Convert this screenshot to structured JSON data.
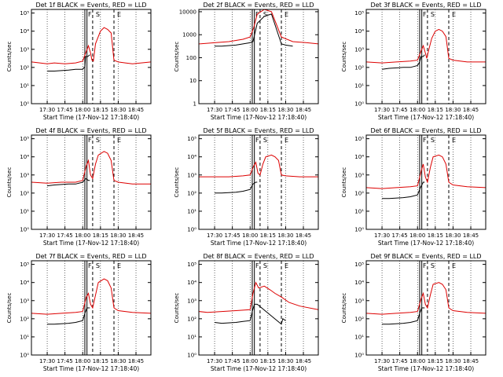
{
  "figure": {
    "background": "#ffffff",
    "colors": {
      "events": "#000000",
      "lld": "#dd0000"
    }
  },
  "chart_data": [
    {
      "type": "line",
      "title": "Det 1f BLACK = Events, RED = LLD",
      "xlabel": "Start Time (17-Nov-12 17:18:40)",
      "ylabel": "Counts/sec",
      "xticks": [
        "17:30",
        "17:45",
        "18:00",
        "18:15",
        "18:30",
        "18:45"
      ],
      "yticks": [
        "10⁰",
        "10¹",
        "10²",
        "10³",
        "10⁴",
        "10⁵"
      ],
      "xlim": [
        17.278,
        18.96
      ],
      "ylim_log10": [
        0,
        5.2
      ],
      "markers": [
        "F",
        "S",
        "E"
      ],
      "grid_dotted": true,
      "solid_lines": [
        18.03,
        18.06
      ],
      "dashed_lines": [
        18.14,
        18.44
      ],
      "series": [
        {
          "x": [
            17.5,
            17.6,
            17.8,
            17.9,
            18.0,
            18.02,
            18.03,
            18.04,
            18.05,
            18.07,
            18.1
          ],
          "log10_y": [
            1.8,
            1.8,
            1.85,
            1.9,
            1.9,
            2.0,
            2.0,
            2.6,
            2.6,
            2.6,
            2.7
          ]
        },
        {
          "x": [
            17.28,
            17.5,
            17.6,
            17.75,
            17.9,
            18.0,
            18.08,
            18.11,
            18.13,
            18.15,
            18.18,
            18.25,
            18.3,
            18.35,
            18.4,
            18.44,
            18.5,
            18.6,
            18.7,
            18.96
          ],
          "log10_y": [
            2.3,
            2.2,
            2.25,
            2.2,
            2.25,
            2.35,
            3.2,
            2.8,
            2.4,
            2.35,
            3.3,
            4.0,
            4.2,
            4.1,
            3.9,
            2.4,
            2.3,
            2.25,
            2.2,
            2.3
          ]
        }
      ]
    },
    {
      "type": "line",
      "title": "Det 2f BLACK = Events, RED = LLD",
      "xlabel": "Start Time (17-Nov-12 17:18:40)",
      "ylabel": "Counts/sec",
      "xticks": [
        "17:30",
        "17:45",
        "18:00",
        "18:15",
        "18:30",
        "18:45"
      ],
      "yticks": [
        "1",
        "10",
        "100",
        "1000",
        "10000"
      ],
      "xlim": [
        17.278,
        18.96
      ],
      "ylim_log10": [
        0,
        4.1
      ],
      "markers": [
        "F",
        "S",
        "E"
      ],
      "grid_dotted": true,
      "solid_lines": [
        18.03,
        18.06
      ],
      "dashed_lines": [
        18.14,
        18.44
      ],
      "series": [
        {
          "x": [
            17.5,
            17.6,
            17.8,
            17.9,
            18.0,
            18.04,
            18.1,
            18.2,
            18.3,
            18.44,
            18.5,
            18.6
          ],
          "log10_y": [
            2.5,
            2.5,
            2.55,
            2.6,
            2.65,
            2.7,
            3.5,
            3.8,
            3.9,
            2.6,
            2.55,
            2.5
          ]
        },
        {
          "x": [
            17.28,
            17.5,
            17.7,
            17.9,
            18.0,
            18.05,
            18.1,
            18.2,
            18.3,
            18.44,
            18.6,
            18.8,
            18.96
          ],
          "log10_y": [
            2.6,
            2.65,
            2.7,
            2.8,
            2.9,
            3.3,
            3.9,
            4.1,
            4.0,
            2.9,
            2.7,
            2.65,
            2.6
          ]
        }
      ]
    },
    {
      "type": "line",
      "title": "Det 3f BLACK = Events, RED = LLD",
      "xlabel": "Start Time (17-Nov-12 17:18:40)",
      "ylabel": "Counts/sec",
      "xticks": [
        "17:30",
        "17:45",
        "18:00",
        "18:15",
        "18:30",
        "18:45"
      ],
      "yticks": [
        "10⁰",
        "10¹",
        "10²",
        "10³",
        "10⁴",
        "10⁵"
      ],
      "xlim": [
        17.278,
        18.96
      ],
      "ylim_log10": [
        0,
        5.2
      ],
      "markers": [
        "F",
        "S",
        "E"
      ],
      "grid_dotted": true,
      "solid_lines": [
        18.03,
        18.06
      ],
      "dashed_lines": [
        18.14,
        18.44
      ],
      "series": [
        {
          "x": [
            17.5,
            17.6,
            17.8,
            17.9,
            18.0,
            18.03,
            18.05,
            18.08,
            18.1
          ],
          "log10_y": [
            1.9,
            1.95,
            2.0,
            2.0,
            2.1,
            2.3,
            2.6,
            2.6,
            2.7
          ]
        },
        {
          "x": [
            17.28,
            17.5,
            17.7,
            17.9,
            18.0,
            18.08,
            18.11,
            18.13,
            18.16,
            18.2,
            18.25,
            18.3,
            18.35,
            18.4,
            18.44,
            18.5,
            18.7,
            18.96
          ],
          "log10_y": [
            2.3,
            2.25,
            2.3,
            2.35,
            2.4,
            3.2,
            2.8,
            2.5,
            3.0,
            3.6,
            4.0,
            4.1,
            4.0,
            3.7,
            2.5,
            2.4,
            2.3,
            2.3
          ]
        }
      ]
    },
    {
      "type": "line",
      "title": "Det 4f BLACK = Events, RED = LLD",
      "xlabel": "Start Time (17-Nov-12 17:18:40)",
      "ylabel": "Counts/sec",
      "xticks": [
        "17:30",
        "17:45",
        "18:00",
        "18:15",
        "18:30",
        "18:45"
      ],
      "yticks": [
        "10⁰",
        "10¹",
        "10²",
        "10³",
        "10⁴",
        "10⁵"
      ],
      "xlim": [
        17.278,
        18.96
      ],
      "ylim_log10": [
        0,
        5.2
      ],
      "markers": [
        "F",
        "S",
        "E"
      ],
      "grid_dotted": true,
      "solid_lines": [
        18.03,
        18.06
      ],
      "dashed_lines": [
        18.14,
        18.44
      ],
      "series": [
        {
          "x": [
            17.5,
            17.6,
            17.8,
            17.9,
            18.0,
            18.04,
            18.08,
            18.1
          ],
          "log10_y": [
            2.4,
            2.45,
            2.5,
            2.5,
            2.6,
            2.8,
            2.7,
            2.7
          ]
        },
        {
          "x": [
            17.28,
            17.5,
            17.7,
            17.9,
            18.0,
            18.05,
            18.08,
            18.11,
            18.14,
            18.18,
            18.22,
            18.3,
            18.35,
            18.4,
            18.44,
            18.5,
            18.7,
            18.96
          ],
          "log10_y": [
            2.6,
            2.55,
            2.6,
            2.6,
            2.7,
            3.5,
            3.8,
            3.0,
            2.8,
            3.6,
            4.1,
            4.3,
            4.2,
            3.8,
            2.7,
            2.6,
            2.5,
            2.5
          ]
        }
      ]
    },
    {
      "type": "line",
      "title": "Det 5f BLACK = Events, RED = LLD",
      "xlabel": "Start Time (17-Nov-12 17:18:40)",
      "ylabel": "Counts/sec",
      "xticks": [
        "17:30",
        "17:45",
        "18:00",
        "18:15",
        "18:30",
        "18:45"
      ],
      "yticks": [
        "10⁰",
        "10¹",
        "10²",
        "10³",
        "10⁴",
        "10⁵"
      ],
      "xlim": [
        17.278,
        18.96
      ],
      "ylim_log10": [
        0,
        5.2
      ],
      "markers": [
        "F",
        "S",
        "E"
      ],
      "grid_dotted": true,
      "solid_lines": [
        18.03,
        18.06
      ],
      "dashed_lines": [
        18.14,
        18.44
      ],
      "series": [
        {
          "x": [
            17.5,
            17.6,
            17.8,
            17.9,
            18.0,
            18.04,
            18.08,
            18.1
          ],
          "log10_y": [
            2.0,
            2.0,
            2.05,
            2.1,
            2.2,
            2.5,
            2.6,
            2.6
          ]
        },
        {
          "x": [
            17.28,
            17.5,
            17.7,
            17.9,
            18.0,
            18.05,
            18.08,
            18.11,
            18.14,
            18.18,
            18.22,
            18.3,
            18.35,
            18.4,
            18.44,
            18.5,
            18.7,
            18.96
          ],
          "log10_y": [
            2.9,
            2.9,
            2.9,
            2.95,
            3.0,
            3.5,
            3.7,
            3.1,
            3.0,
            3.6,
            4.0,
            4.1,
            4.0,
            3.8,
            3.0,
            2.95,
            2.9,
            2.9
          ]
        }
      ]
    },
    {
      "type": "line",
      "title": "Det 6f BLACK = Events, RED = LLD",
      "xlabel": "Start Time (17-Nov-12 17:18:40)",
      "ylabel": "Counts/sec",
      "xticks": [
        "17:30",
        "17:45",
        "18:00",
        "18:15",
        "18:30",
        "18:45"
      ],
      "yticks": [
        "10⁰",
        "10¹",
        "10²",
        "10³",
        "10⁴",
        "10⁵"
      ],
      "xlim": [
        17.278,
        18.96
      ],
      "ylim_log10": [
        0,
        5.2
      ],
      "markers": [
        "F",
        "S",
        "E"
      ],
      "grid_dotted": true,
      "solid_lines": [
        18.03,
        18.06
      ],
      "dashed_lines": [
        18.14,
        18.44
      ],
      "series": [
        {
          "x": [
            17.5,
            17.6,
            17.8,
            17.9,
            18.0,
            18.04,
            18.08,
            18.1
          ],
          "log10_y": [
            1.7,
            1.7,
            1.75,
            1.8,
            1.9,
            2.3,
            2.6,
            2.6
          ]
        },
        {
          "x": [
            17.28,
            17.5,
            17.7,
            17.9,
            18.0,
            18.05,
            18.08,
            18.11,
            18.14,
            18.18,
            18.22,
            18.3,
            18.35,
            18.4,
            18.44,
            18.5,
            18.7,
            18.96
          ],
          "log10_y": [
            2.3,
            2.25,
            2.3,
            2.35,
            2.4,
            3.2,
            3.6,
            2.9,
            2.6,
            3.4,
            4.0,
            4.1,
            4.0,
            3.6,
            2.6,
            2.45,
            2.35,
            2.3
          ]
        }
      ]
    },
    {
      "type": "line",
      "title": "Det 7f BLACK = Events, RED = LLD",
      "xlabel": "Start Time (17-Nov-12 17:18:40)",
      "ylabel": "Counts/sec",
      "xticks": [
        "17:30",
        "17:45",
        "18:00",
        "18:15",
        "18:30",
        "18:45"
      ],
      "yticks": [
        "10⁰",
        "10¹",
        "10²",
        "10³",
        "10⁴",
        "10⁵"
      ],
      "xlim": [
        17.278,
        18.96
      ],
      "ylim_log10": [
        0,
        5.2
      ],
      "markers": [
        "F",
        "S",
        "E"
      ],
      "grid_dotted": true,
      "solid_lines": [
        18.03,
        18.06
      ],
      "dashed_lines": [
        18.14,
        18.44
      ],
      "series": [
        {
          "x": [
            17.5,
            17.6,
            17.8,
            17.9,
            18.0,
            18.03,
            18.06,
            18.1
          ],
          "log10_y": [
            1.7,
            1.7,
            1.75,
            1.8,
            1.9,
            2.3,
            2.6,
            2.6
          ]
        },
        {
          "x": [
            17.28,
            17.5,
            17.7,
            17.9,
            18.0,
            18.05,
            18.08,
            18.11,
            18.14,
            18.18,
            18.22,
            18.3,
            18.35,
            18.4,
            18.44,
            18.5,
            18.7,
            18.96
          ],
          "log10_y": [
            2.3,
            2.25,
            2.3,
            2.35,
            2.4,
            3.2,
            3.4,
            2.8,
            2.6,
            3.3,
            4.0,
            4.2,
            4.1,
            3.7,
            2.6,
            2.45,
            2.35,
            2.3
          ]
        }
      ]
    },
    {
      "type": "line",
      "title": "Det 8f BLACK = Events, RED = LLD",
      "xlabel": "Start Time (17-Nov-12 17:18:40)",
      "ylabel": "Counts/sec",
      "xticks": [
        "17:30",
        "17:45",
        "18:00",
        "18:15",
        "18:30",
        "18:45"
      ],
      "yticks": [
        "10⁰",
        "10¹",
        "10²",
        "10³",
        "10⁴",
        "10⁵"
      ],
      "xlim": [
        17.278,
        18.96
      ],
      "ylim_log10": [
        0,
        5.2
      ],
      "markers": [
        "F",
        "S",
        "E"
      ],
      "grid_dotted": true,
      "solid_lines": [
        18.03,
        18.06
      ],
      "dashed_lines": [
        18.14,
        18.44
      ],
      "series": [
        {
          "x": [
            17.5,
            17.6,
            17.8,
            17.9,
            18.0,
            18.03,
            18.06,
            18.1,
            18.44,
            18.46,
            18.5
          ],
          "log10_y": [
            1.8,
            1.75,
            1.8,
            1.85,
            1.9,
            2.4,
            2.8,
            2.8,
            1.7,
            2.0,
            1.9
          ]
        },
        {
          "x": [
            17.28,
            17.4,
            17.6,
            17.8,
            18.0,
            18.04,
            18.08,
            18.12,
            18.2,
            18.28,
            18.35,
            18.44,
            18.55,
            18.7,
            18.96
          ],
          "log10_y": [
            2.4,
            2.35,
            2.4,
            2.45,
            2.5,
            3.4,
            4.0,
            3.7,
            3.8,
            3.6,
            3.4,
            3.2,
            2.9,
            2.7,
            2.5
          ]
        }
      ]
    },
    {
      "type": "line",
      "title": "Det 9f BLACK = Events, RED = LLD",
      "xlabel": "Start Time (17-Nov-12 17:18:40)",
      "ylabel": "Counts/sec",
      "xticks": [
        "17:30",
        "17:45",
        "18:00",
        "18:15",
        "18:30",
        "18:45"
      ],
      "yticks": [
        "10⁰",
        "10¹",
        "10²",
        "10³",
        "10⁴",
        "10⁵"
      ],
      "xlim": [
        17.278,
        18.96
      ],
      "ylim_log10": [
        0,
        5.2
      ],
      "markers": [
        "F",
        "S",
        "E"
      ],
      "grid_dotted": true,
      "solid_lines": [
        18.03,
        18.06
      ],
      "dashed_lines": [
        18.14,
        18.44
      ],
      "series": [
        {
          "x": [
            17.5,
            17.6,
            17.8,
            17.9,
            18.0,
            18.03,
            18.06,
            18.1
          ],
          "log10_y": [
            1.7,
            1.7,
            1.75,
            1.8,
            1.9,
            2.3,
            2.6,
            2.6
          ]
        },
        {
          "x": [
            17.28,
            17.5,
            17.7,
            17.9,
            18.0,
            18.05,
            18.08,
            18.11,
            18.14,
            18.18,
            18.22,
            18.3,
            18.35,
            18.4,
            18.44,
            18.5,
            18.7,
            18.96
          ],
          "log10_y": [
            2.3,
            2.25,
            2.3,
            2.35,
            2.4,
            3.1,
            3.4,
            2.8,
            2.6,
            3.3,
            3.9,
            4.0,
            3.9,
            3.6,
            2.6,
            2.45,
            2.35,
            2.3
          ]
        }
      ]
    }
  ]
}
